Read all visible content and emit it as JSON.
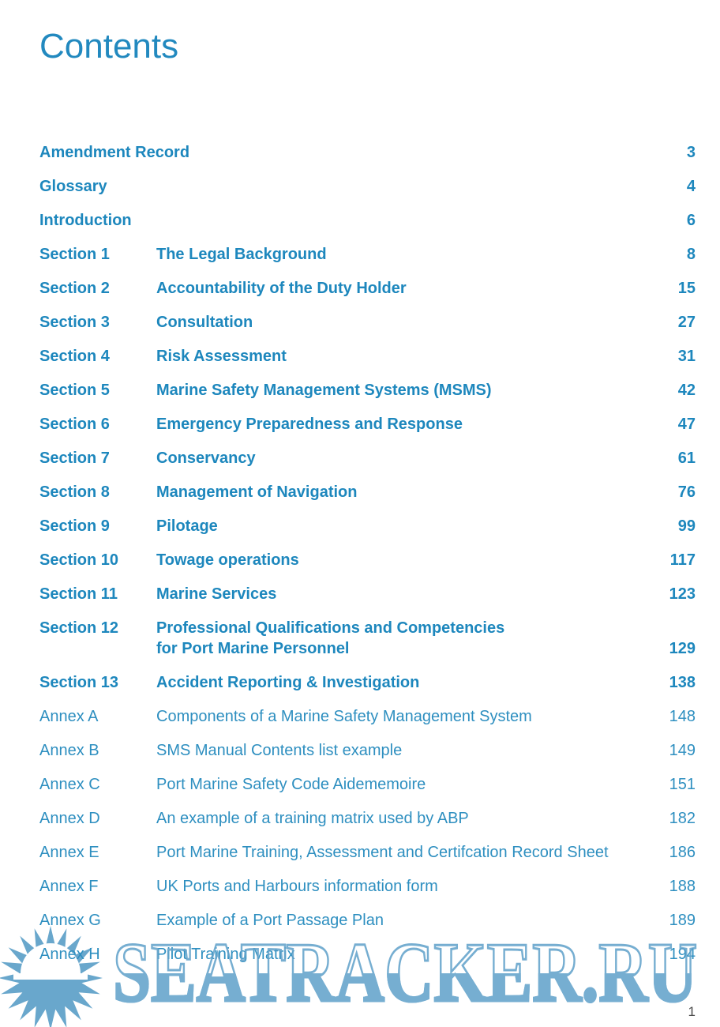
{
  "page": {
    "title": "Contents",
    "page_number": "1"
  },
  "colors": {
    "text_blue": "#1d87bd",
    "annex_blue": "#2e8fc0",
    "watermark_blue": "#64a3cb"
  },
  "toc": {
    "entries": [
      {
        "group": "front",
        "label": "",
        "title": "Amendment Record",
        "page": "3"
      },
      {
        "group": "front",
        "label": "",
        "title": "Glossary",
        "page": "4"
      },
      {
        "group": "front",
        "label": "",
        "title": "Introduction",
        "page": "6"
      },
      {
        "group": "section",
        "label": "Section 1",
        "title": "The Legal Background",
        "page": "8"
      },
      {
        "group": "section",
        "label": "Section 2",
        "title": "Accountability of the Duty Holder",
        "page": "15"
      },
      {
        "group": "section",
        "label": "Section 3",
        "title": "Consultation",
        "page": "27"
      },
      {
        "group": "section",
        "label": "Section 4",
        "title": "Risk Assessment",
        "page": "31"
      },
      {
        "group": "section",
        "label": "Section 5",
        "title": "Marine Safety Management Systems (MSMS)",
        "page": "42"
      },
      {
        "group": "section",
        "label": "Section 6",
        "title": "Emergency Preparedness and Response",
        "page": "47"
      },
      {
        "group": "section",
        "label": "Section 7",
        "title": "Conservancy",
        "page": "61"
      },
      {
        "group": "section",
        "label": "Section 8",
        "title": "Management of Navigation",
        "page": "76"
      },
      {
        "group": "section",
        "label": "Section 9",
        "title": "Pilotage",
        "page": "99"
      },
      {
        "group": "section",
        "label": "Section 10",
        "title": "Towage operations",
        "page": "117"
      },
      {
        "group": "section",
        "label": "Section 11",
        "title": "Marine Services",
        "page": "123"
      },
      {
        "group": "section",
        "label": "Section 12",
        "title": "Professional Qualifications and Competencies\nfor Port Marine Personnel",
        "page": "129"
      },
      {
        "group": "section",
        "label": "Section 13",
        "title": "Accident Reporting & Investigation",
        "page": "138"
      },
      {
        "group": "annex",
        "label": "Annex A",
        "title": "Components of a Marine Safety Management System",
        "page": "148"
      },
      {
        "group": "annex",
        "label": "Annex B",
        "title": "SMS Manual Contents list example",
        "page": "149"
      },
      {
        "group": "annex",
        "label": "Annex C",
        "title": "Port Marine Safety Code Aidememoire",
        "page": "151"
      },
      {
        "group": "annex",
        "label": "Annex D",
        "title": "An example of a training matrix used by ABP",
        "page": "182"
      },
      {
        "group": "annex",
        "label": "Annex E",
        "title": "Port Marine Training, Assessment and Certifcation Record Sheet",
        "page": "186"
      },
      {
        "group": "annex",
        "label": "Annex F",
        "title": "UK Ports and Harbours information form",
        "page": "188"
      },
      {
        "group": "annex",
        "label": "Annex G",
        "title": "Example of a Port Passage Plan",
        "page": "189"
      },
      {
        "group": "annex",
        "label": "Annex H",
        "title": "Pilot Training Matrix",
        "page": "194"
      }
    ]
  },
  "watermark": {
    "text": "SEATRACKER.RU"
  }
}
